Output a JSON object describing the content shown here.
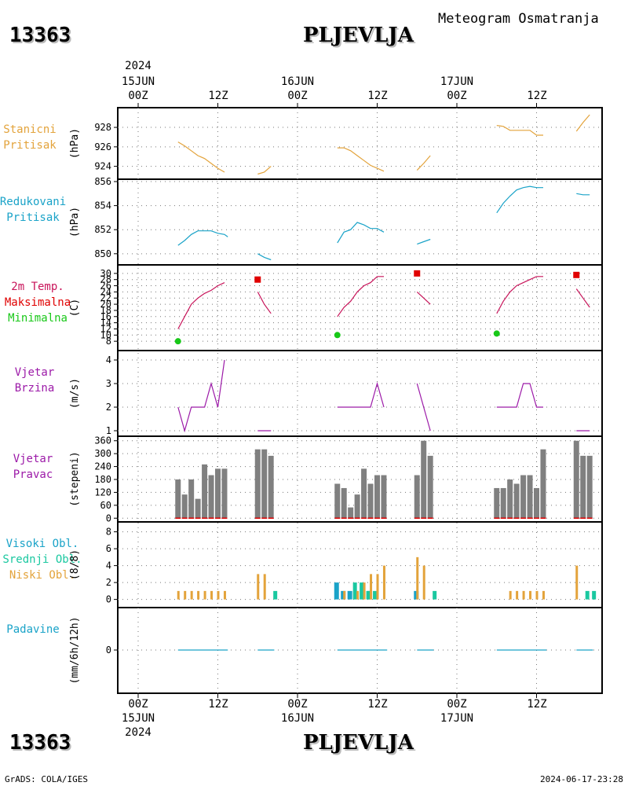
{
  "header": {
    "station_id": "13363",
    "station_name": "PLJEVLJA",
    "subtitle": "Meteogram Osmatranja"
  },
  "footer": {
    "left": "GrADS: COLA/IGES",
    "right": "2024-06-17-23:28"
  },
  "time_axis": {
    "top_year": "2024",
    "ticks": [
      {
        "hour": 0,
        "label": "00Z",
        "date": "15JUN"
      },
      {
        "hour": 12,
        "label": "12Z"
      },
      {
        "hour": 24,
        "label": "00Z",
        "date": "16JUN"
      },
      {
        "hour": 36,
        "label": "12Z"
      },
      {
        "hour": 48,
        "label": "00Z",
        "date": "17JUN"
      },
      {
        "hour": 60,
        "label": "12Z"
      }
    ],
    "bottom_year": "2024"
  },
  "panels": {
    "station_pressure": {
      "label_lines": [
        "Stanicni",
        "Pritisak"
      ],
      "unit": "(hPa)",
      "color": "#e3a33b"
    },
    "reduced_pressure": {
      "label_lines": [
        "Redukovani",
        "Pritisak"
      ],
      "unit": "(hPa)",
      "color": "#1aa3c8"
    },
    "temperature": {
      "label_lines": [
        "2m Temp.",
        "Maksimalna",
        "Minimalna"
      ],
      "label_colors": [
        "#c8145a",
        "#e00000",
        "#18c818"
      ],
      "unit": "(C)"
    },
    "wind_speed": {
      "label_lines": [
        "Vjetar",
        "Brzina"
      ],
      "unit": "(m/s)",
      "color": "#9c1aa8"
    },
    "wind_dir": {
      "label_lines": [
        "Vjetar",
        "Pravac"
      ],
      "unit": "(stepeni)",
      "color": "#9c1aa8"
    },
    "clouds": {
      "label_lines": [
        "Visoki Obl.",
        "Srednji Obl.",
        "Niski Obl."
      ],
      "label_colors": [
        "#1aa3c8",
        "#1ac8a0",
        "#e3a33b"
      ],
      "unit": "(8/8)"
    },
    "precip": {
      "label_lines": [
        "Padavine"
      ],
      "unit": "(mm/6h/12h)",
      "color": "#1aa3c8"
    }
  },
  "chart_data": [
    {
      "type": "line",
      "name": "station_pressure",
      "yticks": [
        924,
        926,
        928
      ],
      "ylim": [
        923,
        929.7
      ],
      "segments": [
        [
          [
            6,
            926.5
          ],
          [
            7,
            926.1
          ],
          [
            8,
            925.6
          ],
          [
            9,
            925.1
          ],
          [
            10,
            924.8
          ],
          [
            11,
            924.3
          ],
          [
            12,
            923.8
          ],
          [
            13,
            923.4
          ]
        ],
        [
          [
            18,
            923.2
          ],
          [
            19,
            923.4
          ],
          [
            20,
            924.0
          ]
        ],
        [
          [
            30,
            925.9
          ],
          [
            31,
            925.9
          ],
          [
            32,
            925.6
          ],
          [
            33,
            925.1
          ],
          [
            34,
            924.6
          ],
          [
            35,
            924.1
          ],
          [
            36,
            923.8
          ],
          [
            37,
            923.5
          ]
        ],
        [
          [
            42,
            923.6
          ],
          [
            43,
            924.3
          ],
          [
            44,
            925.1
          ]
        ],
        [
          [
            54,
            928.2
          ],
          [
            55,
            928.1
          ],
          [
            56,
            927.7
          ],
          [
            57,
            927.7
          ],
          [
            58,
            927.7
          ],
          [
            59,
            927.7
          ],
          [
            60,
            927.2
          ],
          [
            61,
            927.2
          ]
        ],
        [
          [
            66,
            927.6
          ],
          [
            67,
            928.5
          ],
          [
            68,
            929.3
          ]
        ]
      ]
    },
    {
      "type": "line",
      "name": "reduced_pressure",
      "yticks": [
        850,
        852,
        854,
        856
      ],
      "ylim": [
        849.4,
        856.0
      ],
      "segments": [
        [
          [
            6,
            850.7
          ],
          [
            7,
            851.1
          ],
          [
            8,
            851.6
          ],
          [
            9,
            851.9
          ],
          [
            10,
            851.9
          ],
          [
            11,
            851.9
          ],
          [
            12,
            851.7
          ],
          [
            13,
            851.6
          ],
          [
            13.5,
            851.4
          ]
        ],
        [
          [
            18,
            850.0
          ],
          [
            19,
            849.7
          ],
          [
            20,
            849.5
          ]
        ],
        [
          [
            30,
            850.9
          ],
          [
            31,
            851.8
          ],
          [
            32,
            852.0
          ],
          [
            33,
            852.6
          ],
          [
            34,
            852.4
          ],
          [
            35,
            852.1
          ],
          [
            36,
            852.1
          ],
          [
            37,
            851.8
          ]
        ],
        [
          [
            42,
            850.8
          ],
          [
            43,
            851.0
          ],
          [
            44,
            851.2
          ]
        ],
        [
          [
            54,
            853.4
          ],
          [
            55,
            854.2
          ],
          [
            56,
            854.8
          ],
          [
            57,
            855.3
          ],
          [
            58,
            855.5
          ],
          [
            59,
            855.6
          ],
          [
            60,
            855.5
          ],
          [
            61,
            855.5
          ]
        ],
        [
          [
            66,
            855.0
          ],
          [
            67,
            854.9
          ],
          [
            68,
            854.9
          ]
        ]
      ]
    },
    {
      "type": "line",
      "name": "temperature",
      "yticks": [
        8,
        10,
        12,
        14,
        16,
        18,
        20,
        22,
        24,
        26,
        28,
        30
      ],
      "ylim": [
        6,
        32
      ],
      "segments": [
        [
          [
            6,
            12
          ],
          [
            7,
            16
          ],
          [
            8,
            20
          ],
          [
            9,
            22
          ],
          [
            10,
            23.5
          ],
          [
            11,
            24.5
          ],
          [
            12,
            26
          ],
          [
            13,
            27
          ]
        ],
        [
          [
            18,
            24
          ],
          [
            19,
            20
          ],
          [
            20,
            17
          ]
        ],
        [
          [
            30,
            16
          ],
          [
            31,
            19
          ],
          [
            32,
            21
          ],
          [
            33,
            24
          ],
          [
            34,
            26
          ],
          [
            35,
            27
          ],
          [
            36,
            29
          ],
          [
            37,
            29
          ]
        ],
        [
          [
            42,
            24
          ],
          [
            43,
            22
          ],
          [
            44,
            20
          ]
        ],
        [
          [
            54,
            17
          ],
          [
            55,
            21
          ],
          [
            56,
            24
          ],
          [
            57,
            26
          ],
          [
            58,
            27
          ],
          [
            59,
            28
          ],
          [
            60,
            29
          ],
          [
            61,
            29
          ]
        ],
        [
          [
            66,
            25
          ],
          [
            67,
            22
          ],
          [
            68,
            19
          ]
        ]
      ],
      "max_points": [
        [
          18,
          28
        ],
        [
          42,
          30
        ],
        [
          66,
          29.5
        ]
      ],
      "min_points": [
        [
          6,
          8
        ],
        [
          30,
          10
        ],
        [
          54,
          10.5
        ]
      ]
    },
    {
      "type": "line",
      "name": "wind_speed",
      "yticks": [
        1,
        2,
        3,
        4
      ],
      "ylim": [
        1,
        4.2
      ],
      "segments": [
        [
          [
            6,
            2
          ],
          [
            7,
            1
          ],
          [
            8,
            2
          ],
          [
            9,
            2
          ],
          [
            10,
            2
          ],
          [
            11,
            3
          ],
          [
            12,
            2
          ],
          [
            13,
            4
          ]
        ],
        [
          [
            18,
            1
          ],
          [
            19,
            1
          ],
          [
            20,
            1
          ]
        ],
        [
          [
            30,
            2
          ],
          [
            31,
            2
          ],
          [
            32,
            2
          ],
          [
            33,
            2
          ],
          [
            34,
            2
          ],
          [
            35,
            2
          ],
          [
            36,
            3
          ],
          [
            37,
            2
          ]
        ],
        [
          [
            42,
            3
          ],
          [
            43,
            2
          ],
          [
            44,
            1
          ]
        ],
        [
          [
            54,
            2
          ],
          [
            55,
            2
          ],
          [
            56,
            2
          ],
          [
            57,
            2
          ],
          [
            58,
            3
          ],
          [
            59,
            3
          ],
          [
            60,
            2
          ],
          [
            61,
            2
          ]
        ],
        [
          [
            66,
            1
          ],
          [
            67,
            1
          ],
          [
            68,
            1
          ]
        ]
      ]
    },
    {
      "type": "bar",
      "name": "wind_direction",
      "yticks": [
        0,
        60,
        120,
        180,
        240,
        300,
        360
      ],
      "ylim": [
        -10,
        370
      ],
      "bars": [
        [
          6,
          180
        ],
        [
          7,
          110
        ],
        [
          8,
          180
        ],
        [
          9,
          90
        ],
        [
          10,
          250
        ],
        [
          11,
          200
        ],
        [
          12,
          230
        ],
        [
          13,
          230
        ],
        [
          18,
          320
        ],
        [
          19,
          320
        ],
        [
          20,
          290
        ],
        [
          30,
          160
        ],
        [
          31,
          140
        ],
        [
          32,
          50
        ],
        [
          33,
          110
        ],
        [
          34,
          230
        ],
        [
          35,
          160
        ],
        [
          36,
          200
        ],
        [
          37,
          200
        ],
        [
          42,
          200
        ],
        [
          43,
          360
        ],
        [
          44,
          290
        ],
        [
          54,
          140
        ],
        [
          55,
          140
        ],
        [
          56,
          180
        ],
        [
          57,
          160
        ],
        [
          58,
          200
        ],
        [
          59,
          200
        ],
        [
          60,
          140
        ],
        [
          61,
          320
        ],
        [
          66,
          360
        ],
        [
          67,
          290
        ],
        [
          68,
          290
        ]
      ]
    },
    {
      "type": "bar",
      "name": "clouds",
      "yticks": [
        0,
        2,
        4,
        6,
        8
      ],
      "ylim": [
        -0.5,
        8.8
      ],
      "series": [
        {
          "name": "Niski Obl.",
          "color": "#e3a33b",
          "bars": [
            [
              6,
              1
            ],
            [
              7,
              1
            ],
            [
              8,
              1
            ],
            [
              9,
              1
            ],
            [
              10,
              1
            ],
            [
              11,
              1
            ],
            [
              12,
              1
            ],
            [
              13,
              1
            ],
            [
              18,
              3
            ],
            [
              19,
              3
            ],
            [
              31,
              1
            ],
            [
              33,
              1
            ],
            [
              34,
              2
            ],
            [
              35,
              3
            ],
            [
              36,
              3
            ],
            [
              37,
              4
            ],
            [
              42,
              5
            ],
            [
              43,
              4
            ],
            [
              56,
              1
            ],
            [
              57,
              1
            ],
            [
              58,
              1
            ],
            [
              59,
              1
            ],
            [
              60,
              1
            ],
            [
              61,
              1
            ],
            [
              66,
              4
            ]
          ]
        },
        {
          "name": "Srednji Obl.",
          "color": "#1ac8a0",
          "bars": [
            [
              20,
              1
            ],
            [
              32,
              2
            ],
            [
              33,
              2
            ],
            [
              34,
              1
            ],
            [
              35,
              1
            ],
            [
              44,
              1
            ],
            [
              67,
              1
            ],
            [
              68,
              1
            ]
          ]
        },
        {
          "name": "Visoki Obl.",
          "color": "#1aa3c8",
          "bars": [
            [
              30,
              2
            ],
            [
              31,
              1
            ],
            [
              32,
              1
            ],
            [
              35,
              1
            ],
            [
              42,
              1
            ]
          ]
        }
      ]
    },
    {
      "type": "line",
      "name": "precipitation",
      "yticks": [
        0
      ],
      "ylim": [
        -5,
        5
      ],
      "segments": [
        [
          [
            6,
            0
          ],
          [
            13.5,
            0
          ]
        ],
        [
          [
            18,
            0
          ],
          [
            20.5,
            0
          ]
        ],
        [
          [
            30,
            0
          ],
          [
            37.5,
            0
          ]
        ],
        [
          [
            42,
            0
          ],
          [
            44.5,
            0
          ]
        ],
        [
          [
            54,
            0
          ],
          [
            61.5,
            0
          ]
        ],
        [
          [
            66,
            0
          ],
          [
            68.5,
            0
          ]
        ]
      ]
    }
  ]
}
